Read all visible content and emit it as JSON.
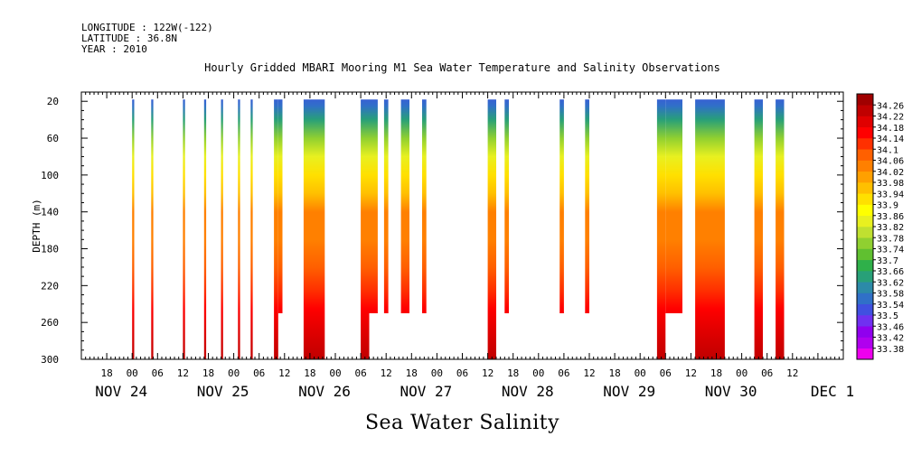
{
  "header": {
    "longitude": "LONGITUDE : 122W(-122)",
    "latitude": "LATITUDE : 36.8N",
    "year": "YEAR : 2010"
  },
  "chart_data": {
    "type": "heatmap",
    "title": "Hourly Gridded MBARI Mooring M1 Sea Water Temperature and Salinity Observations",
    "xlabel": "Sea Water Salinity",
    "ylabel": "DEPTH (m)",
    "y_ticks": [
      20,
      60,
      100,
      140,
      180,
      220,
      260,
      300
    ],
    "ylim": [
      300,
      10
    ],
    "x_hour_ticks": [
      "18",
      "00",
      "06",
      "12",
      "18",
      "00",
      "06",
      "12",
      "18",
      "00",
      "06",
      "12",
      "18",
      "00",
      "06",
      "12",
      "18",
      "00",
      "06",
      "12",
      "18",
      "00",
      "06",
      "12",
      "18",
      "00",
      "06",
      "12"
    ],
    "x_date_labels": [
      {
        "label": "NOV 24",
        "hour": 0
      },
      {
        "label": "NOV 25",
        "hour": 24
      },
      {
        "label": "NOV 26",
        "hour": 48
      },
      {
        "label": "NOV 27",
        "hour": 72
      },
      {
        "label": "NOV 28",
        "hour": 96
      },
      {
        "label": "NOV 29",
        "hour": 120
      },
      {
        "label": "NOV 30",
        "hour": 144
      },
      {
        "label": "DEC  1",
        "hour": 168
      }
    ],
    "xlim_hours": [
      -12,
      168
    ],
    "colorbar_levels": [
      "34.26",
      "34.22",
      "34.18",
      "34.14",
      "34.1",
      "34.06",
      "34.02",
      "33.98",
      "33.94",
      "33.9",
      "33.86",
      "33.82",
      "33.78",
      "33.74",
      "33.7",
      "33.66",
      "33.62",
      "33.58",
      "33.54",
      "33.5",
      "33.46",
      "33.42",
      "33.38"
    ],
    "colors": [
      "#ee00ee",
      "#b000ee",
      "#9000ee",
      "#7030f0",
      "#4050e0",
      "#3070c8",
      "#2c8aa8",
      "#28a078",
      "#2fb04a",
      "#60c030",
      "#90d030",
      "#c0e030",
      "#e8f020",
      "#ffff00",
      "#ffe000",
      "#ffc000",
      "#ffa000",
      "#ff8000",
      "#ff6000",
      "#ff3000",
      "#ff0000",
      "#e00000",
      "#c00000",
      "#a00000"
    ],
    "observation_blocks": [
      {
        "start": 0.0,
        "end": 0.5,
        "bottom": 300
      },
      {
        "start": 4.5,
        "end": 5.0,
        "bottom": 300
      },
      {
        "start": 12.0,
        "end": 12.5,
        "bottom": 300
      },
      {
        "start": 17.0,
        "end": 17.5,
        "bottom": 300
      },
      {
        "start": 21.0,
        "end": 21.5,
        "bottom": 300
      },
      {
        "start": 25.0,
        "end": 25.5,
        "bottom": 300
      },
      {
        "start": 28.0,
        "end": 28.5,
        "bottom": 300
      },
      {
        "start": 33.5,
        "end": 34.5,
        "bottom": 300
      },
      {
        "start": 34.5,
        "end": 35.5,
        "bottom": 250
      },
      {
        "start": 40.5,
        "end": 45.5,
        "bottom": 300
      },
      {
        "start": 54.0,
        "end": 56.0,
        "bottom": 300
      },
      {
        "start": 56.0,
        "end": 58.0,
        "bottom": 250
      },
      {
        "start": 59.5,
        "end": 60.5,
        "bottom": 250
      },
      {
        "start": 63.5,
        "end": 65.5,
        "bottom": 250
      },
      {
        "start": 68.5,
        "end": 69.5,
        "bottom": 250
      },
      {
        "start": 84.0,
        "end": 86.0,
        "bottom": 300
      },
      {
        "start": 88.0,
        "end": 89.0,
        "bottom": 250
      },
      {
        "start": 101.0,
        "end": 102.0,
        "bottom": 250
      },
      {
        "start": 107.0,
        "end": 108.0,
        "bottom": 250
      },
      {
        "start": 124.0,
        "end": 126.0,
        "bottom": 300
      },
      {
        "start": 126.0,
        "end": 130.0,
        "bottom": 250
      },
      {
        "start": 133.0,
        "end": 140.0,
        "bottom": 300
      },
      {
        "start": 147.0,
        "end": 149.0,
        "bottom": 300
      },
      {
        "start": 152.0,
        "end": 154.0,
        "bottom": 300
      }
    ],
    "depth_profile": [
      {
        "depth": 10,
        "value": 33.52
      },
      {
        "depth": 25,
        "value": 33.56
      },
      {
        "depth": 40,
        "value": 33.64
      },
      {
        "depth": 60,
        "value": 33.76
      },
      {
        "depth": 80,
        "value": 33.86
      },
      {
        "depth": 100,
        "value": 33.93
      },
      {
        "depth": 120,
        "value": 33.98
      },
      {
        "depth": 140,
        "value": 34.02
      },
      {
        "depth": 170,
        "value": 34.06
      },
      {
        "depth": 200,
        "value": 34.08
      },
      {
        "depth": 225,
        "value": 34.11
      },
      {
        "depth": 245,
        "value": 34.17
      },
      {
        "depth": 270,
        "value": 34.22
      },
      {
        "depth": 300,
        "value": 34.25
      }
    ]
  }
}
